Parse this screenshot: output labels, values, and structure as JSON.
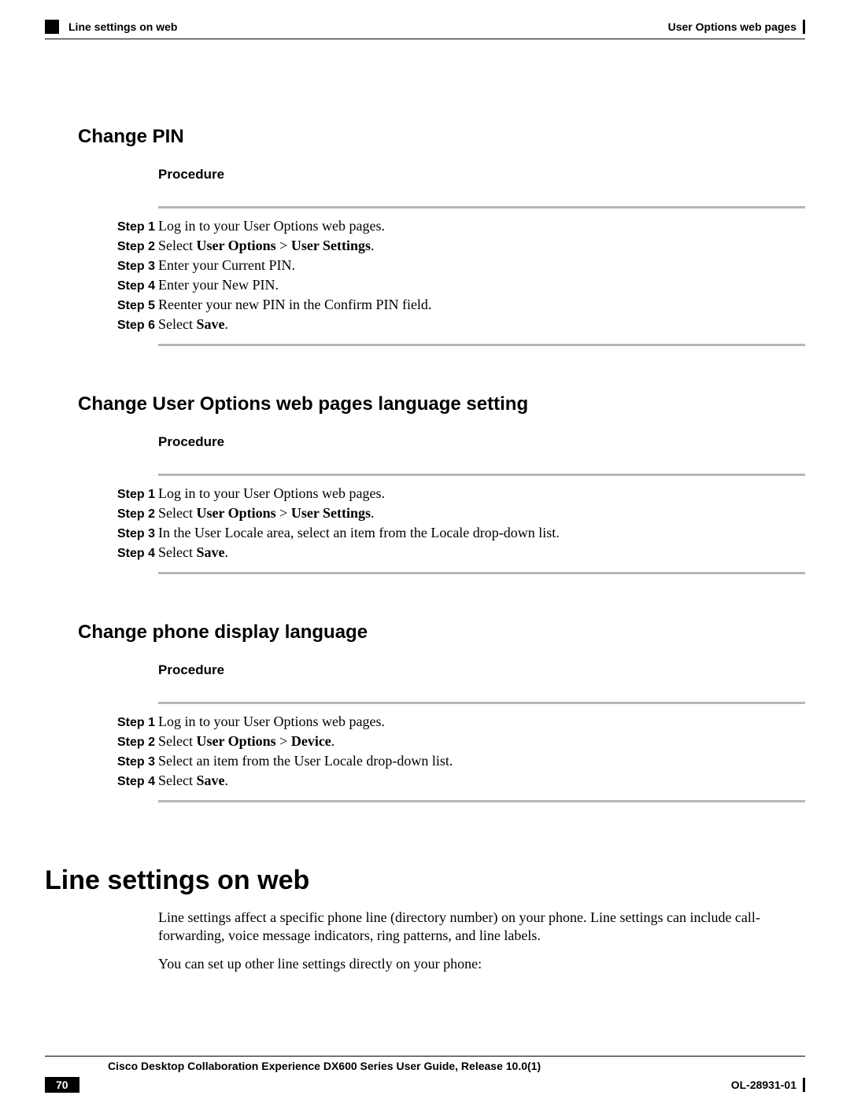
{
  "header": {
    "left_label": "Line settings on web",
    "right_label": "User Options web pages"
  },
  "sections": [
    {
      "title": "Change PIN",
      "procedure_label": "Procedure",
      "steps": [
        {
          "label": "Step 1",
          "segments": [
            {
              "t": "Log in to your User Options web pages.",
              "b": false
            }
          ]
        },
        {
          "label": "Step 2",
          "segments": [
            {
              "t": "Select ",
              "b": false
            },
            {
              "t": "User Options",
              "b": true
            },
            {
              "t": " > ",
              "b": false
            },
            {
              "t": "User Settings",
              "b": true
            },
            {
              "t": ".",
              "b": false
            }
          ]
        },
        {
          "label": "Step 3",
          "segments": [
            {
              "t": "Enter your Current PIN.",
              "b": false
            }
          ]
        },
        {
          "label": "Step 4",
          "segments": [
            {
              "t": "Enter your New PIN.",
              "b": false
            }
          ]
        },
        {
          "label": "Step 5",
          "segments": [
            {
              "t": "Reenter your new PIN in the Confirm PIN field.",
              "b": false
            }
          ]
        },
        {
          "label": "Step 6",
          "segments": [
            {
              "t": "Select ",
              "b": false
            },
            {
              "t": "Save",
              "b": true
            },
            {
              "t": ".",
              "b": false
            }
          ]
        }
      ]
    },
    {
      "title": "Change User Options web pages language setting",
      "procedure_label": "Procedure",
      "steps": [
        {
          "label": "Step 1",
          "segments": [
            {
              "t": "Log in to your User Options web pages.",
              "b": false
            }
          ]
        },
        {
          "label": "Step 2",
          "segments": [
            {
              "t": "Select ",
              "b": false
            },
            {
              "t": "User Options",
              "b": true
            },
            {
              "t": " > ",
              "b": false
            },
            {
              "t": "User Settings",
              "b": true
            },
            {
              "t": ".",
              "b": false
            }
          ]
        },
        {
          "label": "Step 3",
          "segments": [
            {
              "t": "In the User Locale area, select an item from the Locale drop-down list.",
              "b": false
            }
          ]
        },
        {
          "label": "Step 4",
          "segments": [
            {
              "t": "Select ",
              "b": false
            },
            {
              "t": "Save",
              "b": true
            },
            {
              "t": ".",
              "b": false
            }
          ]
        }
      ]
    },
    {
      "title": "Change phone display language",
      "procedure_label": "Procedure",
      "steps": [
        {
          "label": "Step 1",
          "segments": [
            {
              "t": "Log in to your User Options web pages.",
              "b": false
            }
          ]
        },
        {
          "label": "Step 2",
          "segments": [
            {
              "t": "Select ",
              "b": false
            },
            {
              "t": "User Options",
              "b": true
            },
            {
              "t": " > ",
              "b": false
            },
            {
              "t": "Device",
              "b": true
            },
            {
              "t": ".",
              "b": false
            }
          ]
        },
        {
          "label": "Step 3",
          "segments": [
            {
              "t": "Select an item from the User Locale drop-down list.",
              "b": false
            }
          ]
        },
        {
          "label": "Step 4",
          "segments": [
            {
              "t": "Select ",
              "b": false
            },
            {
              "t": "Save",
              "b": true
            },
            {
              "t": ".",
              "b": false
            }
          ]
        }
      ]
    }
  ],
  "main_heading": "Line settings on web",
  "paragraphs": [
    "Line settings affect a specific phone line (directory number) on your phone. Line settings can include call-forwarding, voice message indicators, ring patterns, and line labels.",
    "You can set up other line settings directly on your phone:"
  ],
  "footer": {
    "title": "Cisco Desktop Collaboration Experience DX600 Series User Guide, Release 10.0(1)",
    "page_number": "70",
    "doc_id": "OL-28931-01"
  }
}
